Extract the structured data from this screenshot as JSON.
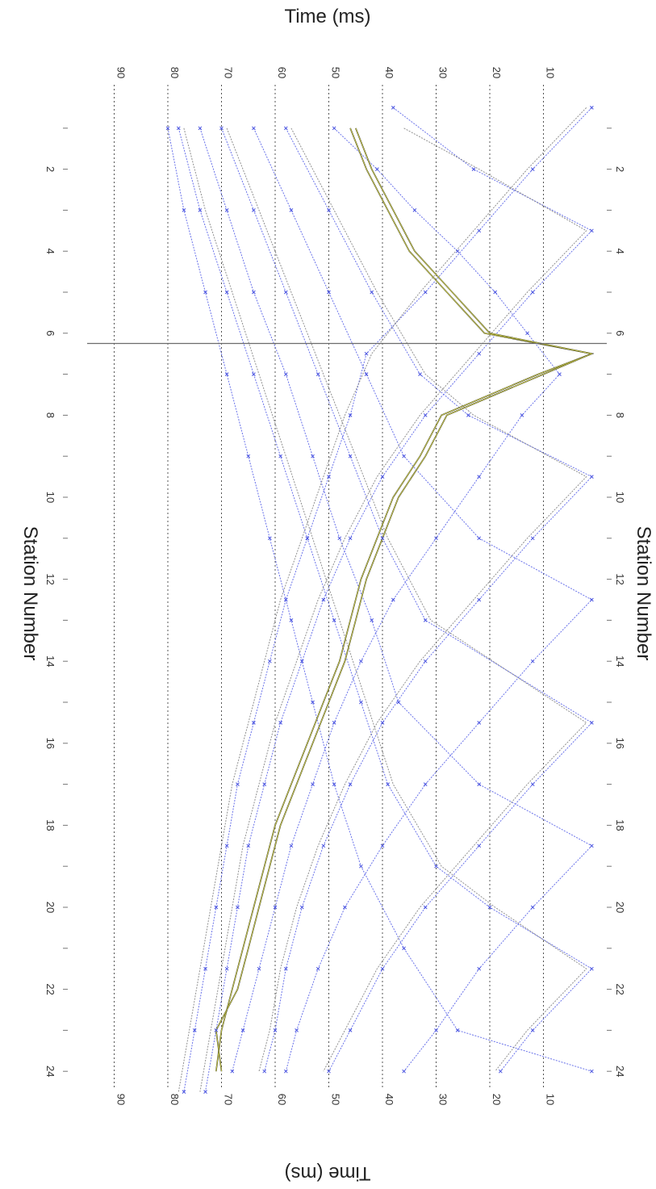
{
  "chart_data": {
    "type": "line",
    "orientation": "rotated-90",
    "xlabel": "Station Number",
    "ylabel": "Time (ms)",
    "x_ticks": [
      2,
      4,
      6,
      8,
      10,
      12,
      14,
      16,
      18,
      20,
      22,
      24
    ],
    "y_ticks": [
      10,
      20,
      30,
      40,
      50,
      60,
      70,
      80,
      90
    ],
    "xlim": [
      0.5,
      24.5
    ],
    "ylim": [
      0,
      94
    ],
    "grid": true,
    "cursor_station": 6.25,
    "colors": {
      "picks": "#5a64e8",
      "model": "#7d7d7d",
      "highlight": "#1a1a1a",
      "highlight_core": "#c9c94a"
    },
    "series": [
      {
        "style": "blue",
        "x": [
          0.5,
          2,
          3.5,
          5,
          6.5,
          8,
          9.5,
          11,
          12.5,
          14,
          15.5,
          17,
          18.5,
          20,
          21.5,
          23,
          24.5
        ],
        "y": [
          1,
          12,
          22,
          32,
          43,
          46,
          50,
          54,
          58,
          61,
          64,
          67,
          69,
          71,
          73,
          75,
          77
        ]
      },
      {
        "style": "blue",
        "x": [
          0.5,
          2,
          3.5,
          5,
          6.5,
          8,
          9.5,
          11,
          12.5,
          14,
          15.5,
          17,
          18.5,
          20,
          21.5,
          23,
          24.5
        ],
        "y": [
          38,
          23,
          1,
          12,
          22,
          32,
          40,
          46,
          51,
          55,
          59,
          62,
          65,
          67,
          69,
          71,
          73
        ]
      },
      {
        "style": "blue",
        "x": [
          1,
          2,
          3,
          4,
          5,
          6,
          7,
          8,
          9.5,
          11,
          12.5,
          14,
          15.5,
          17,
          18.5,
          20,
          21.5,
          23,
          24
        ],
        "y": [
          49,
          41,
          34,
          26,
          19,
          13,
          7,
          14,
          22,
          30,
          38,
          44,
          49,
          53,
          57,
          60,
          63,
          66,
          68
        ]
      },
      {
        "style": "blue",
        "x": [
          1,
          3,
          5,
          7,
          8,
          9.5,
          11,
          12.5,
          14,
          15.5,
          17,
          18.5,
          20,
          21.5,
          23,
          24
        ],
        "y": [
          58,
          50,
          42,
          33,
          24,
          1,
          12,
          22,
          32,
          40,
          46,
          51,
          55,
          58,
          60,
          62
        ]
      },
      {
        "style": "blue",
        "x": [
          1,
          3,
          5,
          7,
          9,
          11,
          12.5,
          14,
          15.5,
          17,
          18.5,
          20,
          21.5,
          23,
          24
        ],
        "y": [
          64,
          57,
          50,
          43,
          36,
          22,
          1,
          12,
          22,
          32,
          40,
          47,
          52,
          56,
          58
        ]
      },
      {
        "style": "blue",
        "x": [
          1,
          3,
          5,
          7,
          9,
          11,
          13,
          15.5,
          17,
          18.5,
          20,
          21.5,
          23,
          24
        ],
        "y": [
          70,
          64,
          58,
          52,
          46,
          40,
          32,
          1,
          12,
          22,
          32,
          40,
          46,
          50
        ]
      },
      {
        "style": "blue",
        "x": [
          1,
          3,
          5,
          7,
          9,
          11,
          13,
          15,
          17,
          18.5,
          20,
          21.5,
          23,
          24
        ],
        "y": [
          74,
          69,
          64,
          58,
          53,
          48,
          42,
          37,
          22,
          1,
          12,
          22,
          30,
          36
        ]
      },
      {
        "style": "blue",
        "x": [
          1,
          3,
          5,
          7,
          9,
          11,
          13,
          15,
          17,
          19,
          20,
          21.5,
          23,
          24
        ],
        "y": [
          78,
          74,
          69,
          64,
          59,
          54,
          49,
          44,
          39,
          30,
          20,
          1,
          12,
          18
        ]
      },
      {
        "style": "blue",
        "x": [
          1,
          3,
          5,
          7,
          9,
          11,
          13,
          15,
          17,
          19,
          21,
          23,
          24
        ],
        "y": [
          80,
          77,
          73,
          69,
          65,
          61,
          57,
          53,
          49,
          44,
          36,
          26,
          1
        ]
      },
      {
        "style": "gray",
        "x": [
          0.5,
          2,
          3.5,
          5,
          6.5,
          8,
          9.5,
          11,
          12.5,
          14,
          15.5,
          17,
          18.5,
          20,
          21.5,
          23,
          24.5
        ],
        "y": [
          2,
          13,
          23,
          33,
          42,
          47,
          51,
          55,
          59,
          62,
          65,
          68,
          70,
          72,
          74,
          76,
          78
        ]
      },
      {
        "style": "gray",
        "x": [
          1,
          2,
          3.5,
          5,
          6.5,
          8,
          9.5,
          11,
          12.5,
          14,
          15.5,
          17,
          18.5,
          20,
          21.5,
          23,
          24.5
        ],
        "y": [
          36,
          22,
          2,
          13,
          23,
          33,
          41,
          47,
          52,
          56,
          60,
          63,
          66,
          68,
          70,
          72,
          74
        ]
      },
      {
        "style": "gray",
        "x": [
          1,
          3,
          5,
          7,
          8,
          9.5,
          11,
          12.5,
          14,
          15.5,
          17,
          18.5,
          20,
          21.5,
          23,
          24
        ],
        "y": [
          57,
          49,
          41,
          32,
          23,
          2,
          13,
          23,
          33,
          41,
          47,
          52,
          56,
          59,
          61,
          63
        ]
      },
      {
        "style": "gray",
        "x": [
          1,
          3,
          5,
          7,
          9,
          11,
          13,
          15.5,
          17,
          18.5,
          20,
          21.5,
          23,
          24
        ],
        "y": [
          69,
          63,
          57,
          51,
          45,
          39,
          31,
          2,
          13,
          23,
          33,
          41,
          47,
          51
        ]
      },
      {
        "style": "gray",
        "x": [
          1,
          3,
          5,
          7,
          9,
          11,
          13,
          15,
          17,
          19,
          20,
          21.5,
          23,
          24
        ],
        "y": [
          77,
          73,
          68,
          63,
          58,
          53,
          48,
          43,
          38,
          29,
          19,
          2,
          13,
          19
        ]
      },
      {
        "style": "dark",
        "x": [
          1,
          2,
          3,
          4,
          5,
          6,
          6.5,
          7,
          8,
          9,
          10,
          11,
          12,
          13,
          14,
          15,
          16,
          17,
          18,
          19,
          20,
          21,
          22,
          23,
          24
        ],
        "y": [
          46,
          43,
          39,
          35,
          28,
          21,
          1,
          11,
          29,
          33,
          38,
          41,
          44,
          46,
          48,
          51,
          54,
          57,
          60,
          62,
          64,
          66,
          68,
          70,
          71
        ]
      },
      {
        "style": "dark",
        "x": [
          1,
          2,
          3,
          4,
          5,
          6,
          6.5,
          7,
          8,
          9,
          10,
          11,
          12,
          13,
          14,
          15,
          16,
          17,
          18,
          19,
          20,
          21,
          22,
          23,
          24
        ],
        "y": [
          45,
          42,
          38,
          34,
          27,
          20,
          1,
          10,
          28,
          32,
          37,
          40,
          43,
          45,
          47,
          50,
          53,
          56,
          59,
          61,
          63,
          65,
          67,
          71,
          70
        ]
      }
    ]
  }
}
